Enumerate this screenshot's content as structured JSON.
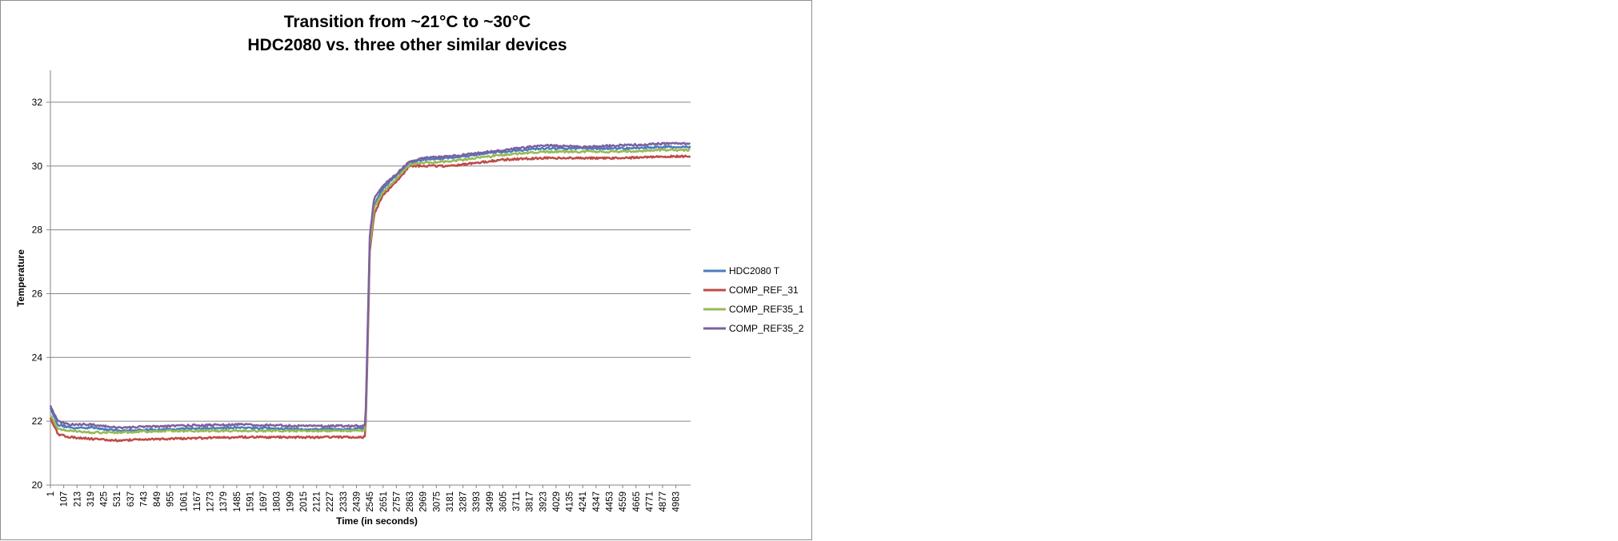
{
  "chart_data": {
    "type": "line",
    "title": "Transition from  ~21°C to ~30°C",
    "subtitle": "HDC2080 vs. three other similar devices",
    "xlabel": "Time (in seconds)",
    "ylabel": "Temperature",
    "ylim": [
      20,
      33
    ],
    "xlim": [
      1,
      5100
    ],
    "yticks": [
      20,
      22,
      24,
      26,
      28,
      30,
      32
    ],
    "xticks": [
      1,
      107,
      213,
      319,
      425,
      531,
      637,
      743,
      849,
      955,
      1061,
      1167,
      1273,
      1379,
      1485,
      1591,
      1697,
      1803,
      1909,
      2015,
      2121,
      2227,
      2333,
      2439,
      2545,
      2651,
      2757,
      2863,
      2969,
      3075,
      3181,
      3287,
      3393,
      3499,
      3605,
      3711,
      3817,
      3923,
      4029,
      4135,
      4241,
      4347,
      4453,
      4559,
      4665,
      4771,
      4877,
      4983
    ],
    "grid": "horizontal",
    "legend_position": "right",
    "series": [
      {
        "name": "HDC2080 T",
        "color": "#4a7ebb",
        "x": [
          1,
          60,
          150,
          319,
          531,
          955,
          1485,
          2015,
          2400,
          2510,
          2530,
          2545,
          2580,
          2651,
          2757,
          2863,
          2969,
          3181,
          3393,
          3605,
          3923,
          4241,
          4559,
          4877,
          5100
        ],
        "y": [
          22.4,
          21.9,
          21.8,
          21.8,
          21.7,
          21.75,
          21.8,
          21.75,
          21.75,
          21.8,
          25.0,
          27.6,
          28.8,
          29.3,
          29.7,
          30.1,
          30.2,
          30.25,
          30.35,
          30.45,
          30.55,
          30.55,
          30.55,
          30.6,
          30.6
        ]
      },
      {
        "name": "COMP_REF_31",
        "color": "#be4b48",
        "x": [
          1,
          60,
          150,
          319,
          531,
          955,
          1485,
          2015,
          2400,
          2510,
          2530,
          2545,
          2580,
          2651,
          2757,
          2863,
          2969,
          3181,
          3393,
          3605,
          3923,
          4241,
          4559,
          4877,
          5100
        ],
        "y": [
          22.1,
          21.6,
          21.5,
          21.45,
          21.4,
          21.45,
          21.5,
          21.5,
          21.5,
          21.5,
          24.6,
          27.3,
          28.5,
          29.1,
          29.5,
          30.0,
          30.0,
          30.0,
          30.1,
          30.2,
          30.25,
          30.25,
          30.25,
          30.3,
          30.3
        ]
      },
      {
        "name": "COMP_REF35_1",
        "color": "#98b954",
        "x": [
          1,
          60,
          150,
          319,
          531,
          955,
          1485,
          2015,
          2400,
          2510,
          2530,
          2545,
          2580,
          2651,
          2757,
          2863,
          2969,
          3181,
          3393,
          3605,
          3923,
          4241,
          4559,
          4877,
          5100
        ],
        "y": [
          22.2,
          21.75,
          21.7,
          21.65,
          21.65,
          21.7,
          21.7,
          21.7,
          21.7,
          21.7,
          24.9,
          27.5,
          28.7,
          29.2,
          29.6,
          30.05,
          30.1,
          30.15,
          30.25,
          30.35,
          30.45,
          30.45,
          30.45,
          30.5,
          30.5
        ]
      },
      {
        "name": "COMP_REF35_2",
        "color": "#7d60a0",
        "x": [
          1,
          60,
          150,
          319,
          531,
          955,
          1485,
          2015,
          2400,
          2510,
          2530,
          2545,
          2580,
          2651,
          2757,
          2863,
          2969,
          3181,
          3393,
          3605,
          3923,
          4241,
          4559,
          4877,
          5100
        ],
        "y": [
          22.5,
          22.0,
          21.9,
          21.9,
          21.8,
          21.85,
          21.9,
          21.85,
          21.85,
          21.85,
          25.2,
          27.8,
          29.0,
          29.4,
          29.75,
          30.15,
          30.25,
          30.3,
          30.4,
          30.5,
          30.65,
          30.6,
          30.65,
          30.7,
          30.7
        ]
      }
    ]
  }
}
